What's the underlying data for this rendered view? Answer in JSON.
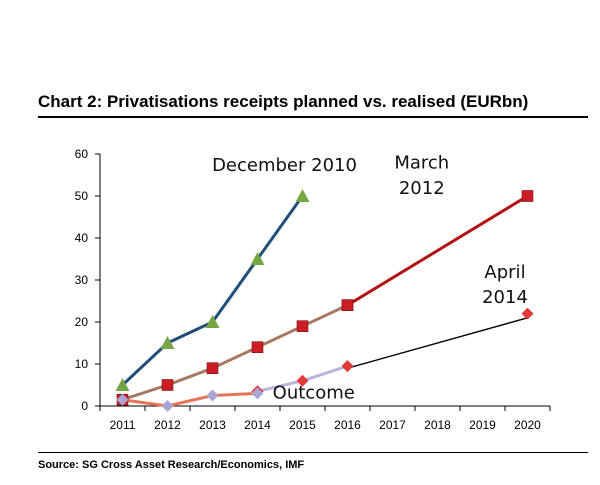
{
  "title": "Chart 2: Privatisations receipts planned vs. realised (EURbn)",
  "source": "Source: SG Cross Asset Research/Economics, IMF",
  "chart_data": {
    "type": "line",
    "title": "Chart 2: Privatisations receipts planned vs. realised (EURbn)",
    "xlabel": "",
    "ylabel": "",
    "x": [
      2011,
      2012,
      2013,
      2014,
      2015,
      2016,
      2017,
      2018,
      2019,
      2020
    ],
    "ylim": [
      0,
      60
    ],
    "yticks": [
      0,
      10,
      20,
      30,
      40,
      50,
      60
    ],
    "grid": false,
    "series": [
      {
        "name": "December 2010",
        "color": "#1f4e79",
        "marker": "triangle",
        "marker_color": "#76a543",
        "points": [
          [
            2011,
            5
          ],
          [
            2012,
            15
          ],
          [
            2013,
            20
          ],
          [
            2014,
            35
          ],
          [
            2015,
            50
          ]
        ]
      },
      {
        "name": "March 2012",
        "color": "#a67860",
        "marker": "square",
        "marker_color": "#cc1d24",
        "points": [
          [
            2011,
            1.5
          ],
          [
            2012,
            5
          ],
          [
            2013,
            9
          ],
          [
            2014,
            14
          ],
          [
            2015,
            19
          ],
          [
            2016,
            24
          ]
        ]
      },
      {
        "name": "March 2012",
        "color": "#b31212",
        "marker": "square",
        "marker_color": "#cc1d24",
        "points": [
          [
            2016,
            24
          ],
          [
            2020,
            50
          ]
        ]
      },
      {
        "name": "April 2014",
        "color": "#b7b5dc",
        "marker": "diamond",
        "marker_color": "#e23a3a",
        "points": [
          [
            2014,
            3.5
          ],
          [
            2015,
            6
          ],
          [
            2016,
            9.5
          ]
        ]
      },
      {
        "name": "April 2014",
        "color": "#000000",
        "marker": "none",
        "points": [
          [
            2016,
            9
          ],
          [
            2020,
            21
          ]
        ]
      },
      {
        "name": "April 2014",
        "color": "#000000",
        "marker": "diamond",
        "marker_color": "#e23a3a",
        "points": [
          [
            2020,
            22
          ]
        ]
      },
      {
        "name": "Outcome",
        "color": "#e8735a",
        "marker": "diamond",
        "marker_color": "#a9a6d4",
        "points": [
          [
            2011,
            1.5
          ],
          [
            2012,
            0
          ],
          [
            2013,
            2.5
          ],
          [
            2014,
            3
          ]
        ]
      }
    ],
    "annotations": [
      {
        "text": "December 2010",
        "x": 2014.6,
        "y": 56
      },
      {
        "text": "March",
        "x": 2017.65,
        "y": 56.5
      },
      {
        "text": "2012",
        "x": 2017.65,
        "y": 50.5
      },
      {
        "text": "April",
        "x": 2019.5,
        "y": 30.5
      },
      {
        "text": "2014",
        "x": 2019.5,
        "y": 24.5
      },
      {
        "text": "Outcome",
        "x": 2015.25,
        "y": 1.8
      }
    ]
  }
}
